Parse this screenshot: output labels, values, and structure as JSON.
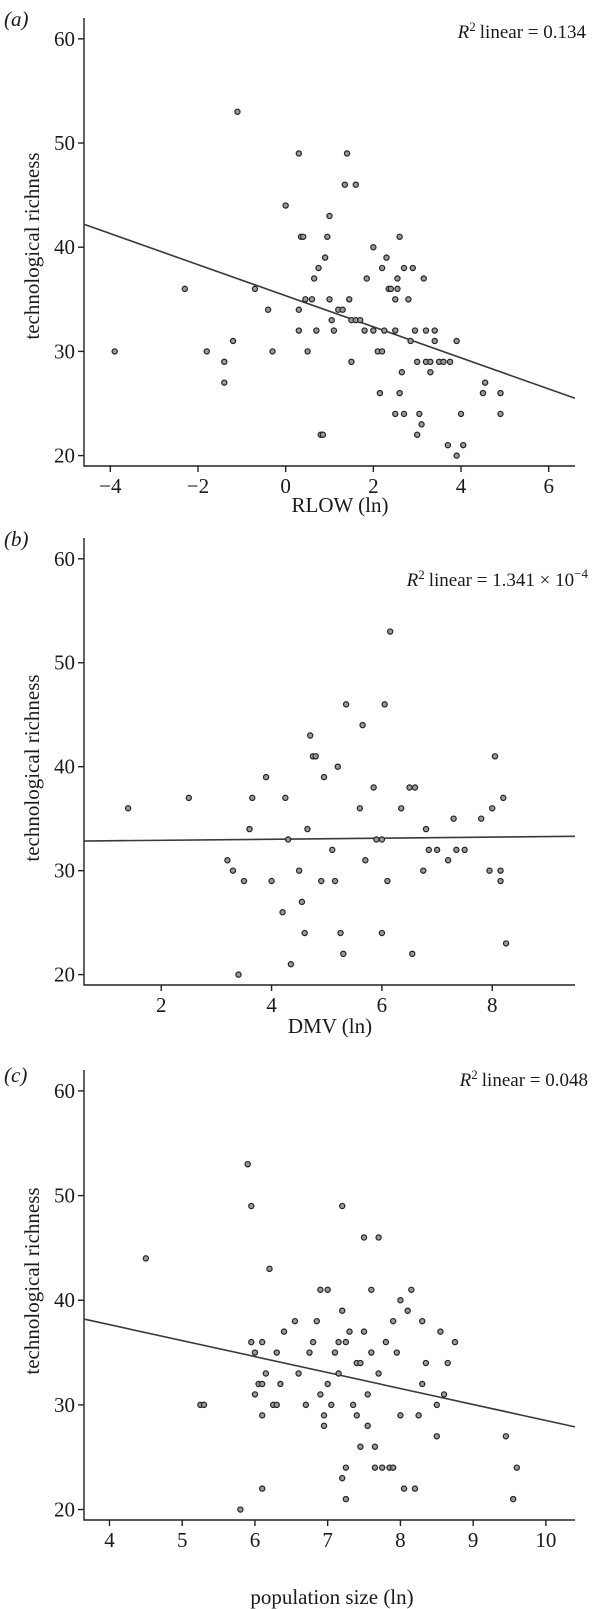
{
  "chart_data": [
    {
      "type": "scatter",
      "panel_label": "(a)",
      "r2_label": "linear = 0.134",
      "xlabel": "RLOW (ln)",
      "ylabel": "technological richness",
      "xlim": [
        -4.6,
        6.6
      ],
      "ylim": [
        19,
        62
      ],
      "xticks": [
        -4,
        -2,
        0,
        2,
        4,
        6
      ],
      "yticks": [
        20,
        30,
        40,
        50,
        60
      ],
      "trendline": {
        "x": [
          -4.6,
          6.6
        ],
        "y": [
          42.2,
          25.5
        ]
      },
      "points": [
        [
          -3.9,
          30
        ],
        [
          -2.3,
          36
        ],
        [
          -1.8,
          30
        ],
        [
          -1.4,
          29
        ],
        [
          -1.4,
          27
        ],
        [
          -1.2,
          31
        ],
        [
          -1.1,
          53
        ],
        [
          -0.7,
          36
        ],
        [
          -0.4,
          34
        ],
        [
          -0.3,
          30
        ],
        [
          0.0,
          44
        ],
        [
          0.3,
          34
        ],
        [
          0.3,
          32
        ],
        [
          0.3,
          49
        ],
        [
          0.35,
          41
        ],
        [
          0.4,
          41
        ],
        [
          0.45,
          35
        ],
        [
          0.5,
          30
        ],
        [
          0.6,
          35
        ],
        [
          0.65,
          37
        ],
        [
          0.7,
          32
        ],
        [
          0.75,
          38
        ],
        [
          0.8,
          22
        ],
        [
          0.85,
          22
        ],
        [
          0.9,
          39
        ],
        [
          0.95,
          41
        ],
        [
          1.0,
          43
        ],
        [
          1.0,
          35
        ],
        [
          1.05,
          33
        ],
        [
          1.1,
          32
        ],
        [
          1.2,
          34
        ],
        [
          1.3,
          34
        ],
        [
          1.35,
          46
        ],
        [
          1.4,
          49
        ],
        [
          1.45,
          35
        ],
        [
          1.5,
          33
        ],
        [
          1.5,
          29
        ],
        [
          1.6,
          46
        ],
        [
          1.6,
          33
        ],
        [
          1.7,
          33
        ],
        [
          1.8,
          32
        ],
        [
          1.85,
          37
        ],
        [
          2.0,
          40
        ],
        [
          2.0,
          32
        ],
        [
          2.1,
          30
        ],
        [
          2.15,
          26
        ],
        [
          2.2,
          30
        ],
        [
          2.2,
          38
        ],
        [
          2.25,
          32
        ],
        [
          2.3,
          39
        ],
        [
          2.35,
          36
        ],
        [
          2.4,
          36
        ],
        [
          2.5,
          24
        ],
        [
          2.5,
          35
        ],
        [
          2.5,
          32
        ],
        [
          2.55,
          37
        ],
        [
          2.55,
          36
        ],
        [
          2.6,
          41
        ],
        [
          2.6,
          26
        ],
        [
          2.65,
          28
        ],
        [
          2.7,
          24
        ],
        [
          2.7,
          38
        ],
        [
          2.8,
          35
        ],
        [
          2.85,
          31
        ],
        [
          2.9,
          38
        ],
        [
          2.95,
          32
        ],
        [
          3.0,
          22
        ],
        [
          3.0,
          29
        ],
        [
          3.05,
          24
        ],
        [
          3.1,
          23
        ],
        [
          3.15,
          37
        ],
        [
          3.2,
          29
        ],
        [
          3.2,
          32
        ],
        [
          3.3,
          28
        ],
        [
          3.3,
          29
        ],
        [
          3.4,
          31
        ],
        [
          3.4,
          32
        ],
        [
          3.5,
          29
        ],
        [
          3.6,
          29
        ],
        [
          3.7,
          21
        ],
        [
          3.75,
          29
        ],
        [
          3.9,
          20
        ],
        [
          3.9,
          31
        ],
        [
          4.0,
          24
        ],
        [
          4.05,
          21
        ],
        [
          4.5,
          26
        ],
        [
          4.55,
          27
        ],
        [
          4.9,
          26
        ],
        [
          4.9,
          24
        ]
      ]
    },
    {
      "type": "scatter",
      "panel_label": "(b)",
      "r2_label": "linear = 1.341 × 10",
      "r2_exp": "−4",
      "xlabel": "DMV (ln)",
      "ylabel": "technological richness",
      "xlim": [
        0.6,
        9.5
      ],
      "ylim": [
        19,
        62
      ],
      "xticks": [
        2,
        4,
        6,
        8
      ],
      "yticks": [
        20,
        30,
        40,
        50,
        60
      ],
      "trendline": {
        "x": [
          0.6,
          9.5
        ],
        "y": [
          32.85,
          33.3
        ]
      },
      "points": [
        [
          1.4,
          36
        ],
        [
          2.5,
          37
        ],
        [
          3.2,
          31
        ],
        [
          3.3,
          30
        ],
        [
          3.4,
          20
        ],
        [
          3.5,
          29
        ],
        [
          3.6,
          34
        ],
        [
          3.65,
          37
        ],
        [
          3.9,
          39
        ],
        [
          4.0,
          29
        ],
        [
          4.2,
          26
        ],
        [
          4.25,
          37
        ],
        [
          4.3,
          33
        ],
        [
          4.35,
          21
        ],
        [
          4.5,
          30
        ],
        [
          4.55,
          27
        ],
        [
          4.6,
          24
        ],
        [
          4.65,
          34
        ],
        [
          4.7,
          43
        ],
        [
          4.75,
          41
        ],
        [
          4.8,
          41
        ],
        [
          4.9,
          29
        ],
        [
          4.95,
          39
        ],
        [
          5.1,
          32
        ],
        [
          5.15,
          29
        ],
        [
          5.2,
          40
        ],
        [
          5.25,
          24
        ],
        [
          5.3,
          22
        ],
        [
          5.35,
          46
        ],
        [
          5.6,
          36
        ],
        [
          5.65,
          44
        ],
        [
          5.7,
          31
        ],
        [
          5.85,
          38
        ],
        [
          5.9,
          33
        ],
        [
          6.0,
          24
        ],
        [
          6.0,
          33
        ],
        [
          6.05,
          46
        ],
        [
          6.1,
          29
        ],
        [
          6.15,
          53
        ],
        [
          6.35,
          36
        ],
        [
          6.5,
          38
        ],
        [
          6.55,
          22
        ],
        [
          6.6,
          38
        ],
        [
          6.75,
          30
        ],
        [
          6.8,
          34
        ],
        [
          6.85,
          32
        ],
        [
          7.0,
          32
        ],
        [
          7.2,
          31
        ],
        [
          7.3,
          35
        ],
        [
          7.35,
          32
        ],
        [
          7.5,
          32
        ],
        [
          7.8,
          35
        ],
        [
          7.95,
          30
        ],
        [
          8.0,
          36
        ],
        [
          8.05,
          41
        ],
        [
          8.15,
          30
        ],
        [
          8.15,
          29
        ],
        [
          8.2,
          37
        ],
        [
          8.25,
          23
        ]
      ]
    },
    {
      "type": "scatter",
      "panel_label": "(c)",
      "r2_label": "linear = 0.048",
      "xlabel": "population size (ln)",
      "ylabel": "technological richness",
      "xlim": [
        3.65,
        10.4
      ],
      "ylim": [
        19,
        62
      ],
      "xticks": [
        4,
        5,
        6,
        7,
        8,
        9,
        10
      ],
      "yticks": [
        20,
        30,
        40,
        50,
        60
      ],
      "trendline": {
        "x": [
          3.65,
          10.4
        ],
        "y": [
          38.2,
          27.9
        ]
      },
      "points": [
        [
          4.5,
          44
        ],
        [
          5.25,
          30
        ],
        [
          5.3,
          30
        ],
        [
          5.8,
          20
        ],
        [
          5.9,
          53
        ],
        [
          5.95,
          49
        ],
        [
          5.95,
          36
        ],
        [
          6.0,
          31
        ],
        [
          6.0,
          35
        ],
        [
          6.05,
          32
        ],
        [
          6.1,
          29
        ],
        [
          6.1,
          32
        ],
        [
          6.1,
          36
        ],
        [
          6.1,
          22
        ],
        [
          6.15,
          33
        ],
        [
          6.2,
          43
        ],
        [
          6.25,
          30
        ],
        [
          6.3,
          35
        ],
        [
          6.3,
          30
        ],
        [
          6.35,
          32
        ],
        [
          6.4,
          37
        ],
        [
          6.55,
          38
        ],
        [
          6.6,
          33
        ],
        [
          6.7,
          30
        ],
        [
          6.75,
          35
        ],
        [
          6.8,
          36
        ],
        [
          6.85,
          38
        ],
        [
          6.9,
          41
        ],
        [
          6.9,
          31
        ],
        [
          6.95,
          28
        ],
        [
          6.95,
          29
        ],
        [
          7.0,
          32
        ],
        [
          7.0,
          41
        ],
        [
          7.05,
          30
        ],
        [
          7.1,
          35
        ],
        [
          7.15,
          33
        ],
        [
          7.15,
          36
        ],
        [
          7.2,
          23
        ],
        [
          7.2,
          39
        ],
        [
          7.2,
          49
        ],
        [
          7.25,
          24
        ],
        [
          7.25,
          21
        ],
        [
          7.25,
          36
        ],
        [
          7.3,
          37
        ],
        [
          7.35,
          30
        ],
        [
          7.4,
          29
        ],
        [
          7.4,
          34
        ],
        [
          7.45,
          26
        ],
        [
          7.45,
          34
        ],
        [
          7.5,
          46
        ],
        [
          7.5,
          37
        ],
        [
          7.55,
          31
        ],
        [
          7.55,
          28
        ],
        [
          7.6,
          35
        ],
        [
          7.6,
          41
        ],
        [
          7.65,
          26
        ],
        [
          7.65,
          24
        ],
        [
          7.7,
          46
        ],
        [
          7.7,
          33
        ],
        [
          7.75,
          24
        ],
        [
          7.8,
          36
        ],
        [
          7.85,
          24
        ],
        [
          7.9,
          38
        ],
        [
          7.9,
          24
        ],
        [
          7.95,
          35
        ],
        [
          8.0,
          40
        ],
        [
          8.0,
          29
        ],
        [
          8.05,
          22
        ],
        [
          8.1,
          39
        ],
        [
          8.15,
          41
        ],
        [
          8.2,
          22
        ],
        [
          8.25,
          29
        ],
        [
          8.3,
          32
        ],
        [
          8.3,
          38
        ],
        [
          8.35,
          34
        ],
        [
          8.5,
          27
        ],
        [
          8.5,
          30
        ],
        [
          8.55,
          37
        ],
        [
          8.6,
          31
        ],
        [
          8.65,
          34
        ],
        [
          8.75,
          36
        ],
        [
          9.45,
          27
        ],
        [
          9.55,
          21
        ],
        [
          9.6,
          24
        ]
      ]
    }
  ]
}
